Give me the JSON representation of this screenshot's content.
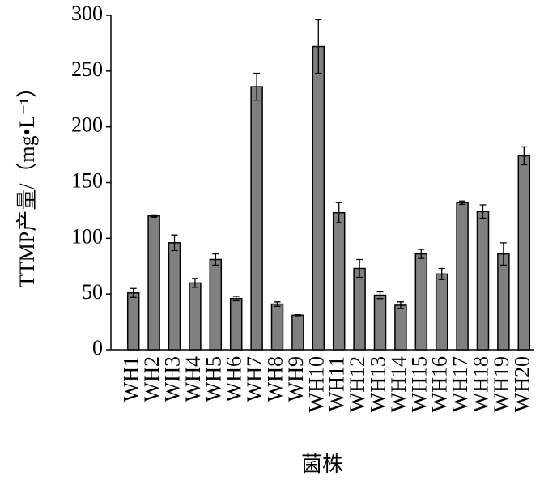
{
  "chart_data": {
    "type": "bar",
    "x_label": "菌株",
    "y_label": "TTMP产量/（mg•L⁻¹）",
    "categories": [
      "WH1",
      "WH2",
      "WH3",
      "WH4",
      "WH5",
      "WH6",
      "WH7",
      "WH8",
      "WH9",
      "WH10",
      "WH11",
      "WH12",
      "WH13",
      "WH14",
      "WH15",
      "WH16",
      "WH17",
      "WH18",
      "WH19",
      "WH20"
    ],
    "values": [
      51,
      120,
      96,
      60,
      81,
      46,
      236,
      41,
      31,
      272,
      123,
      73,
      49,
      40,
      86,
      68,
      132,
      124,
      86,
      174
    ],
    "errors": [
      4,
      1,
      7,
      4,
      5,
      2,
      12,
      2,
      0.5,
      24,
      9,
      8,
      3,
      3,
      4,
      5,
      1.5,
      6,
      10,
      8
    ],
    "color": "#808080",
    "ylim": [
      0,
      300
    ],
    "yticks": [
      0,
      50,
      100,
      150,
      200,
      250,
      300
    ],
    "grid": false
  }
}
